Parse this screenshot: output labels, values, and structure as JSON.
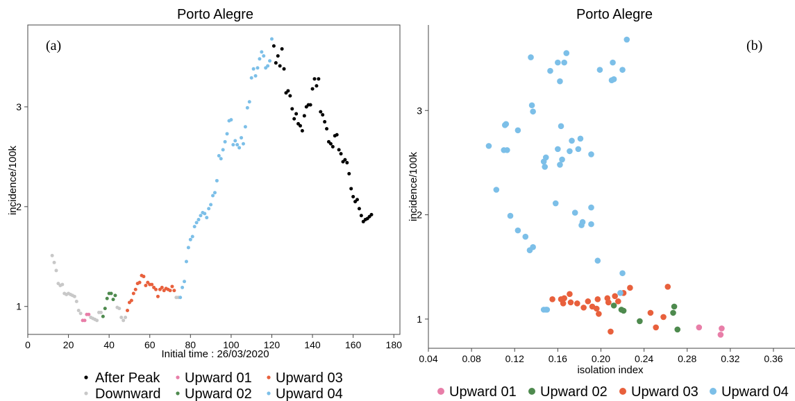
{
  "colors": {
    "after_peak": "#000000",
    "downward": "#c8c8c8",
    "upward_01": "#e87ea8",
    "upward_02": "#4e8a4e",
    "upward_03": "#e8603c",
    "upward_04": "#7cbfe8"
  },
  "chart_data": [
    {
      "type": "scatter",
      "title": "Porto Alegre",
      "panel_label": "(a)",
      "xlabel": "Initial time : 26/03/2020",
      "ylabel": "incidence/100k",
      "xlim": [
        0,
        183
      ],
      "ylim": [
        0.72,
        3.82
      ],
      "xticks": [
        0,
        20,
        40,
        60,
        80,
        100,
        120,
        140,
        160,
        180
      ],
      "yticks": [
        1,
        2,
        3
      ],
      "grid": false,
      "legend_position": "bottom",
      "legend": [
        "After Peak",
        "Downward",
        "Upward 01",
        "Upward 02",
        "Upward 03",
        "Upward 04"
      ],
      "series": [
        {
          "name": "Downward",
          "color_key": "downward",
          "x": [
            12,
            13,
            14,
            15,
            16,
            17,
            18,
            19,
            20,
            21,
            22,
            23,
            24,
            25,
            26,
            31,
            32,
            33,
            34,
            35,
            36,
            44,
            45,
            46,
            47,
            48,
            73,
            74
          ],
          "y": [
            1.51,
            1.44,
            1.36,
            1.23,
            1.21,
            1.22,
            1.13,
            1.12,
            1.13,
            1.12,
            1.11,
            1.1,
            1.05,
            0.96,
            0.93,
            0.89,
            0.88,
            0.87,
            0.86,
            0.94,
            0.94,
            0.99,
            0.98,
            0.89,
            0.86,
            0.89,
            1.09,
            1.09
          ]
        },
        {
          "name": "Upward 01",
          "color_key": "upward_01",
          "x": [
            27,
            28,
            29,
            30
          ],
          "y": [
            0.86,
            0.86,
            0.92,
            0.92
          ]
        },
        {
          "name": "Upward 02",
          "color_key": "upward_02",
          "x": [
            37,
            38,
            39,
            40,
            41,
            42,
            43
          ],
          "y": [
            0.9,
            0.98,
            1.08,
            1.13,
            1.13,
            1.07,
            1.11
          ]
        },
        {
          "name": "Upward 03",
          "color_key": "upward_03",
          "x": [
            49,
            50,
            51,
            52,
            53,
            54,
            55,
            56,
            57,
            58,
            59,
            60,
            61,
            62,
            63,
            64,
            65,
            66,
            67,
            68,
            69,
            70,
            71,
            72
          ],
          "y": [
            0.96,
            1.04,
            1.06,
            1.13,
            1.17,
            1.23,
            1.24,
            1.31,
            1.3,
            1.21,
            1.24,
            1.22,
            1.22,
            1.19,
            1.17,
            1.1,
            1.17,
            1.19,
            1.16,
            1.18,
            1.17,
            1.16,
            1.2,
            1.16
          ]
        },
        {
          "name": "Upward 04",
          "color_key": "upward_04",
          "x": [
            75,
            76,
            77,
            78,
            79,
            80,
            81,
            82,
            83,
            84,
            85,
            86,
            87,
            88,
            89,
            90,
            91,
            92,
            93,
            94,
            95,
            96,
            97,
            98,
            99,
            100,
            101,
            102,
            103,
            104,
            105,
            106,
            107,
            108,
            109,
            110,
            111,
            112,
            113,
            114,
            115,
            116,
            117,
            118,
            119,
            120
          ],
          "y": [
            1.09,
            1.19,
            1.25,
            1.45,
            1.59,
            1.67,
            1.7,
            1.8,
            1.84,
            1.87,
            1.91,
            1.94,
            1.93,
            1.89,
            1.98,
            2.02,
            2.11,
            2.14,
            2.26,
            2.51,
            2.48,
            2.57,
            2.65,
            2.73,
            2.86,
            2.87,
            2.62,
            2.66,
            2.62,
            2.59,
            2.69,
            2.63,
            2.8,
            2.99,
            3.05,
            3.29,
            3.38,
            3.31,
            3.39,
            3.48,
            3.55,
            3.51,
            3.39,
            3.41,
            3.46,
            3.68
          ]
        },
        {
          "name": "After Peak",
          "color_key": "after_peak",
          "x": [
            121,
            122,
            123,
            124,
            125,
            126,
            127,
            128,
            129,
            130,
            131,
            132,
            133,
            134,
            135,
            136,
            137,
            138,
            139,
            140,
            141,
            142,
            143,
            144,
            145,
            146,
            147,
            148,
            149,
            150,
            151,
            152,
            153,
            154,
            155,
            156,
            157,
            158,
            159,
            160,
            161,
            162,
            163,
            164,
            165,
            166,
            167,
            168,
            169
          ],
          "y": [
            3.61,
            3.44,
            3.51,
            3.41,
            3.58,
            3.38,
            3.14,
            3.16,
            3.11,
            2.98,
            2.88,
            2.93,
            2.83,
            2.81,
            2.76,
            2.91,
            3.0,
            3.02,
            3.02,
            3.18,
            3.28,
            3.21,
            3.28,
            2.95,
            2.92,
            2.85,
            2.78,
            2.65,
            2.63,
            2.6,
            2.71,
            2.72,
            2.57,
            2.53,
            2.45,
            2.47,
            2.44,
            2.33,
            2.18,
            2.1,
            2.05,
            2.07,
            1.98,
            1.91,
            1.85,
            1.87,
            1.88,
            1.9,
            1.92
          ]
        }
      ]
    },
    {
      "type": "scatter",
      "title": "Porto Alegre",
      "panel_label": "(b)",
      "xlabel": "isolation index",
      "ylabel": "incidence/100k",
      "xlim": [
        0.04,
        0.38
      ],
      "ylim": [
        0.72,
        3.82
      ],
      "xticks": [
        0.04,
        0.08,
        0.12,
        0.16,
        0.2,
        0.24,
        0.28,
        0.32,
        0.36
      ],
      "xtick_labels": [
        "0.04",
        "0.08",
        "0.12",
        "0.16",
        "0.20",
        "0.24",
        "0.28",
        "0.32",
        "0.36"
      ],
      "yticks": [
        1,
        2,
        3
      ],
      "grid": false,
      "legend_position": "bottom",
      "legend": [
        "Upward 01",
        "Upward 02",
        "Upward 03",
        "Upward 04"
      ],
      "series": [
        {
          "name": "Upward 01",
          "color_key": "upward_01",
          "x": [
            0.291,
            0.312,
            0.311
          ],
          "y": [
            0.92,
            0.91,
            0.85
          ]
        },
        {
          "name": "Upward 02",
          "color_key": "upward_02",
          "x": [
            0.212,
            0.219,
            0.221,
            0.236,
            0.268,
            0.267,
            0.271
          ],
          "y": [
            1.13,
            1.09,
            1.08,
            0.98,
            1.12,
            1.06,
            0.9
          ]
        },
        {
          "name": "Upward 03",
          "color_key": "upward_03",
          "x": [
            0.155,
            0.163,
            0.165,
            0.166,
            0.171,
            0.172,
            0.178,
            0.184,
            0.188,
            0.192,
            0.197,
            0.198,
            0.206,
            0.207,
            0.209,
            0.213,
            0.216,
            0.221,
            0.227,
            0.246,
            0.251,
            0.258,
            0.262,
            0.196,
            0.207
          ],
          "y": [
            1.19,
            1.19,
            1.15,
            1.2,
            1.24,
            1.16,
            1.15,
            1.11,
            1.17,
            1.12,
            1.19,
            1.05,
            1.2,
            1.16,
            0.88,
            1.22,
            1.17,
            1.25,
            1.3,
            1.06,
            0.92,
            1.02,
            1.31,
            1.1,
            1.16
          ]
        },
        {
          "name": "Upward 04",
          "color_key": "upward_04",
          "x": [
            0.147,
            0.15,
            0.149,
            0.218,
            0.197,
            0.22,
            0.134,
            0.137,
            0.13,
            0.182,
            0.123,
            0.116,
            0.183,
            0.191,
            0.176,
            0.191,
            0.158,
            0.113,
            0.11,
            0.179,
            0.191,
            0.162,
            0.103,
            0.096,
            0.181,
            0.111,
            0.147,
            0.148,
            0.149,
            0.164,
            0.171,
            0.173,
            0.16,
            0.112,
            0.123,
            0.137,
            0.136,
            0.163,
            0.21,
            0.162,
            0.135,
            0.16,
            0.153,
            0.199,
            0.211,
            0.22,
            0.168,
            0.212,
            0.166,
            0.224
          ],
          "y": [
            1.09,
            1.09,
            1.09,
            1.25,
            1.56,
            1.44,
            1.66,
            1.69,
            1.79,
            1.9,
            1.85,
            1.99,
            1.93,
            1.91,
            2.02,
            2.07,
            2.11,
            2.62,
            2.62,
            2.63,
            2.58,
            2.48,
            2.24,
            2.66,
            2.73,
            2.86,
            2.51,
            2.46,
            2.55,
            2.53,
            2.61,
            2.71,
            2.63,
            2.87,
            2.81,
            2.99,
            3.05,
            2.85,
            3.29,
            3.28,
            3.51,
            3.46,
            3.38,
            3.39,
            3.46,
            3.39,
            3.55,
            3.3,
            3.46,
            3.68
          ]
        }
      ]
    }
  ]
}
